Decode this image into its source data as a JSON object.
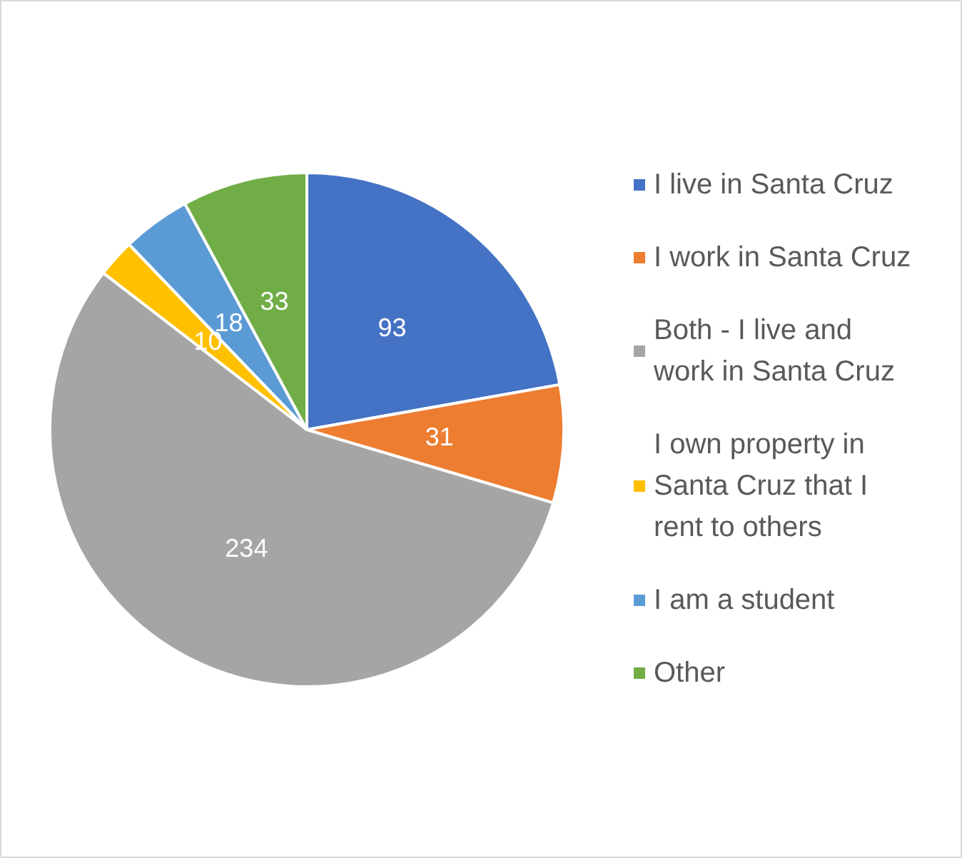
{
  "chart_data": {
    "type": "pie",
    "categories": [
      "I live in Santa Cruz",
      "I work in Santa Cruz",
      "Both - I live and work in Santa Cruz",
      "I own property in Santa Cruz that I rent to others",
      "I am a student",
      "Other"
    ],
    "values": [
      93,
      31,
      234,
      10,
      18,
      33
    ],
    "colors": [
      "#4472c4",
      "#ed7d31",
      "#a5a5a5",
      "#ffc000",
      "#5b9bd5",
      "#70ad47"
    ],
    "data_labels": true,
    "legend": "right"
  }
}
